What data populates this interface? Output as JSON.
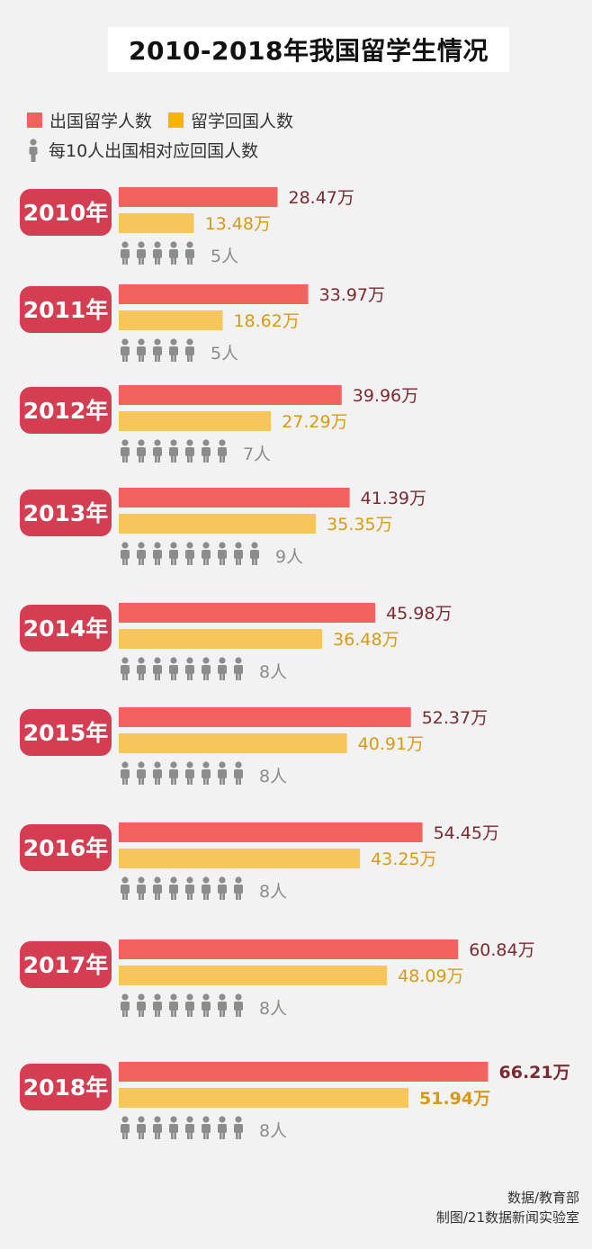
{
  "title": "2010-2018年我国留学生情况",
  "legend": {
    "outbound": "出国留学人数",
    "returned": "留学回国人数",
    "ratio": "每10人出国相对应回国人数"
  },
  "colors": {
    "outbound": "#f2625f",
    "returned": "#f7c65b",
    "year_badge": "#d33e52",
    "outbound_label": "#7a2a30",
    "returned_label": "#d79a16",
    "person_icon": "#8c8c8c",
    "ratio_label": "#8c8c8c"
  },
  "chart_data": {
    "type": "bar",
    "orientation": "horizontal",
    "unit": "万",
    "categories": [
      "2010年",
      "2011年",
      "2012年",
      "2013年",
      "2014年",
      "2015年",
      "2016年",
      "2017年",
      "2018年"
    ],
    "series": [
      {
        "name": "出国留学人数",
        "values": [
          28.47,
          33.97,
          39.96,
          41.39,
          45.98,
          52.37,
          54.45,
          60.84,
          66.21
        ],
        "labels": [
          "28.47万",
          "33.97万",
          "39.96万",
          "41.39万",
          "45.98万",
          "52.37万",
          "54.45万",
          "60.84万",
          "66.21万"
        ]
      },
      {
        "name": "留学回国人数",
        "values": [
          13.48,
          18.62,
          27.29,
          35.35,
          36.48,
          40.91,
          43.25,
          48.09,
          51.94
        ],
        "labels": [
          "13.48万",
          "18.62万",
          "27.29万",
          "35.35万",
          "36.48万",
          "40.91万",
          "43.25万",
          "48.09万",
          "51.94万"
        ]
      }
    ],
    "ratio_per_10": {
      "name": "每10人出国相对应回国人数",
      "values": [
        5,
        5,
        7,
        9,
        8,
        8,
        8,
        8,
        8
      ],
      "labels": [
        "5人",
        "5人",
        "7人",
        "9人",
        "8人",
        "8人",
        "8人",
        "8人",
        "8人"
      ]
    },
    "highlight_category": "2018年"
  },
  "footer": {
    "source": "数据/教育部",
    "credit": "制图/21数据新闻实验室"
  }
}
